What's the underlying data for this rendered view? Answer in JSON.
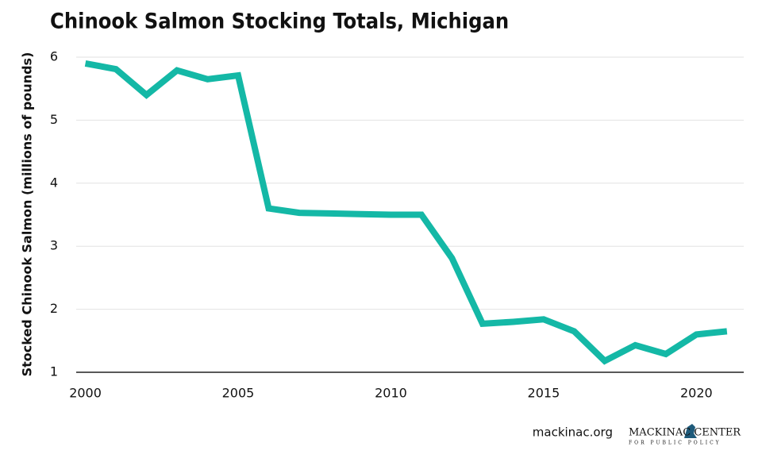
{
  "chart_data": {
    "type": "line",
    "title": "Chinook Salmon Stocking Totals, Michigan",
    "y_label": "Stocked Chinook Salmon  (millions of pounds)",
    "x": [
      2000,
      2001,
      2002,
      2003,
      2004,
      2005,
      2006,
      2007,
      2008,
      2009,
      2010,
      2011,
      2012,
      2013,
      2014,
      2015,
      2016,
      2017,
      2018,
      2019,
      2020,
      2021
    ],
    "series": [
      {
        "name": "Chinook Salmon",
        "color": "#14b8a6",
        "values": [
          5.9,
          5.81,
          5.4,
          5.79,
          5.65,
          5.71,
          3.6,
          3.53,
          3.52,
          3.51,
          3.5,
          3.5,
          2.81,
          1.77,
          1.8,
          1.84,
          1.65,
          1.18,
          1.43,
          1.29,
          1.6,
          1.65
        ]
      }
    ],
    "xlim": [
      1999.7,
      2021.55
    ],
    "xticks": [
      2000,
      2005,
      2010,
      2015,
      2020
    ],
    "ylim": [
      1,
      6
    ],
    "yticks": [
      1,
      2,
      3,
      4,
      5,
      6
    ],
    "grid": true
  },
  "footer": {
    "source": "mackinac.org",
    "logo_name": "MACKINAC CENTER",
    "logo_sub": "FOR PUBLIC POLICY"
  }
}
